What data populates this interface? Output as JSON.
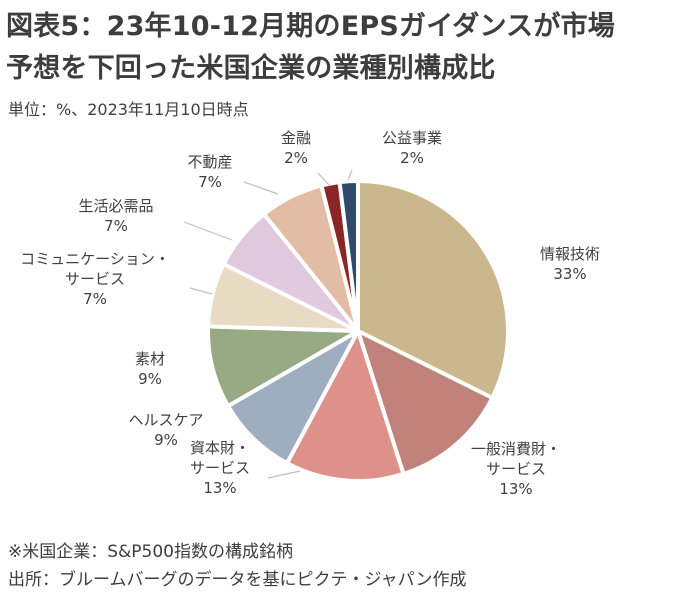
{
  "title": {
    "line1": "図表5：23年10-12月期のEPSガイダンスが市場",
    "line2": "予想を下回った米国企業の業種別構成比"
  },
  "unit_note": "単位：%、2023年11月10日時点",
  "chart_data": {
    "type": "pie",
    "title": "図表5：23年10-12月期のEPSガイダンスが市場予想を下回った米国企業の業種別構成比",
    "unit": "%",
    "start": "12 o'clock, clockwise",
    "slices": [
      {
        "label": [
          "情報技術"
        ],
        "value": 33,
        "value_label": "33%",
        "color": "#cbb78d"
      },
      {
        "label": [
          "一般消費財・",
          "サービス"
        ],
        "value": 13,
        "value_label": "13%",
        "color": "#c0827a"
      },
      {
        "label": [
          "資本財・",
          "サービス"
        ],
        "value": 13,
        "value_label": "13%",
        "color": "#de9189"
      },
      {
        "label": [
          "ヘルスケア"
        ],
        "value": 9,
        "value_label": "9%",
        "color": "#9fadc1"
      },
      {
        "label": [
          "素材"
        ],
        "value": 9,
        "value_label": "9%",
        "color": "#98aa84"
      },
      {
        "label": [
          "コミュニケーション・",
          "サービス"
        ],
        "value": 7,
        "value_label": "7%",
        "color": "#e7dbc4"
      },
      {
        "label": [
          "生活必需品"
        ],
        "value": 7,
        "value_label": "7%",
        "color": "#e0c8dd"
      },
      {
        "label": [
          "不動産"
        ],
        "value": 7,
        "value_label": "7%",
        "color": "#e2bca4"
      },
      {
        "label": [
          "金融"
        ],
        "value": 2,
        "value_label": "2%",
        "color": "#8b2626"
      },
      {
        "label": [
          "公益事業"
        ],
        "value": 2,
        "value_label": "2%",
        "color": "#2f4a6d"
      }
    ]
  },
  "footer": {
    "note": "※米国企業：S&P500指数の構成銘柄",
    "source": "出所：ブルームバーグのデータを基にピクテ・ジャパン作成"
  }
}
